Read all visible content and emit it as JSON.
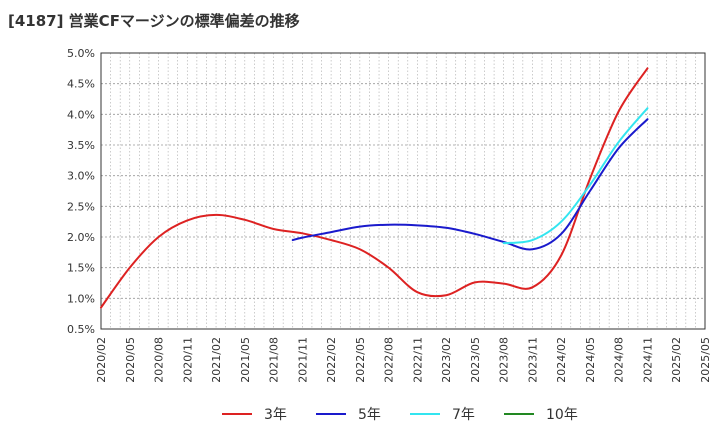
{
  "title": "[4187]  営業CFマージンの標準偏差の推移",
  "chart_data": {
    "type": "line",
    "title": "[4187]  営業CFマージンの標準偏差の推移",
    "xlabel": "",
    "ylabel": "",
    "ylim": [
      0.5,
      5.0
    ],
    "grid": true,
    "legend_position": "bottom",
    "y_ticks": [
      "0.5%",
      "1.0%",
      "1.5%",
      "2.0%",
      "2.5%",
      "3.0%",
      "3.5%",
      "4.0%",
      "4.5%",
      "5.0%"
    ],
    "x_ticks": [
      "2020/02",
      "2020/05",
      "2020/08",
      "2020/11",
      "2021/02",
      "2021/05",
      "2021/08",
      "2021/11",
      "2022/02",
      "2022/05",
      "2022/08",
      "2022/11",
      "2023/02",
      "2023/05",
      "2023/08",
      "2023/11",
      "2024/02",
      "2024/05",
      "2024/08",
      "2024/11",
      "2025/02",
      "2025/05"
    ],
    "series": [
      {
        "name": "3年",
        "color": "#dd2222",
        "points": [
          [
            "2020/02",
            0.85
          ],
          [
            "2020/05",
            1.5
          ],
          [
            "2020/08",
            2.0
          ],
          [
            "2020/11",
            2.27
          ],
          [
            "2021/02",
            2.36
          ],
          [
            "2021/05",
            2.28
          ],
          [
            "2021/08",
            2.13
          ],
          [
            "2021/11",
            2.06
          ],
          [
            "2022/02",
            1.95
          ],
          [
            "2022/05",
            1.8
          ],
          [
            "2022/08",
            1.5
          ],
          [
            "2022/11",
            1.1
          ],
          [
            "2023/02",
            1.05
          ],
          [
            "2023/05",
            1.26
          ],
          [
            "2023/08",
            1.24
          ],
          [
            "2023/11",
            1.18
          ],
          [
            "2024/02",
            1.7
          ],
          [
            "2024/05",
            2.95
          ],
          [
            "2024/08",
            4.05
          ],
          [
            "2024/11",
            4.75
          ]
        ]
      },
      {
        "name": "5年",
        "color": "#1a1acc",
        "points": [
          [
            "2021/10",
            1.95
          ],
          [
            "2021/11",
            1.99
          ],
          [
            "2022/02",
            2.08
          ],
          [
            "2022/05",
            2.17
          ],
          [
            "2022/08",
            2.2
          ],
          [
            "2022/11",
            2.19
          ],
          [
            "2023/02",
            2.15
          ],
          [
            "2023/05",
            2.05
          ],
          [
            "2023/08",
            1.92
          ],
          [
            "2023/11",
            1.8
          ],
          [
            "2024/02",
            2.05
          ],
          [
            "2024/05",
            2.75
          ],
          [
            "2024/08",
            3.45
          ],
          [
            "2024/11",
            3.92
          ]
        ]
      },
      {
        "name": "7年",
        "color": "#33e5f0",
        "points": [
          [
            "2023/08",
            1.9
          ],
          [
            "2023/11",
            1.95
          ],
          [
            "2024/02",
            2.25
          ],
          [
            "2024/05",
            2.85
          ],
          [
            "2024/08",
            3.55
          ],
          [
            "2024/11",
            4.1
          ]
        ]
      },
      {
        "name": "10年",
        "color": "#228822",
        "points": []
      }
    ]
  }
}
